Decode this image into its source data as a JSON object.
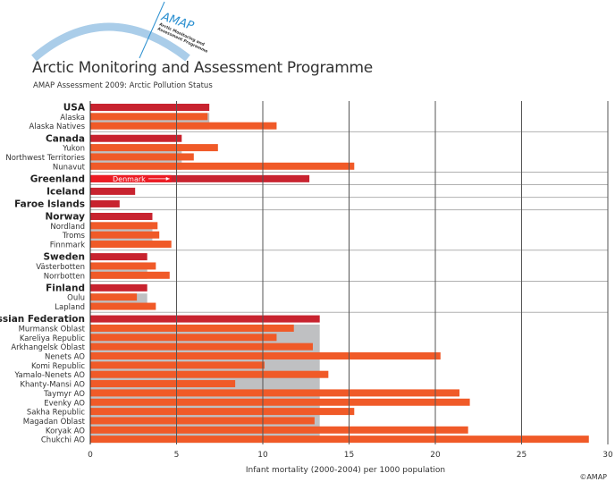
{
  "header": {
    "logo_text": "AMAP",
    "logo_subtext": "Arctic Monitoring and Assessment Programme",
    "title": "Arctic Monitoring and Assessment Programme",
    "subtitle": "AMAP Assessment 2009: Arctic Pollution Status",
    "copyright": "©AMAP"
  },
  "colors": {
    "national": "#c8232f",
    "regional": "#f05a28",
    "reference": "#bfc0c2",
    "denmark": "#ec1c24",
    "grid": "#555555",
    "logo": "#aacde9",
    "logo_text": "#2a8fd0"
  },
  "chart_data": {
    "type": "bar",
    "orientation": "horizontal",
    "xlabel": "Infant mortality (2000-2004) per 1000 population",
    "xlim": [
      0,
      30
    ],
    "xticks": [
      0,
      5,
      10,
      15,
      20,
      25,
      30
    ],
    "grid": true,
    "annotation": {
      "label": "Denmark",
      "group": "Greenland",
      "value": 4.7
    },
    "groups": [
      {
        "name": "USA",
        "value": 6.9,
        "regions": [
          {
            "name": "Alaska",
            "value": 6.8
          },
          {
            "name": "Alaska Natives",
            "value": 10.8
          }
        ]
      },
      {
        "name": "Canada",
        "value": 5.3,
        "regions": [
          {
            "name": "Yukon",
            "value": 7.4
          },
          {
            "name": "Northwest Territories",
            "value": 6.0
          },
          {
            "name": "Nunavut",
            "value": 15.3
          }
        ]
      },
      {
        "name": "Greenland",
        "value": 12.7,
        "regions": []
      },
      {
        "name": "Iceland",
        "value": 2.6,
        "regions": []
      },
      {
        "name": "Faroe Islands",
        "value": 1.7,
        "regions": []
      },
      {
        "name": "Norway",
        "value": 3.6,
        "regions": [
          {
            "name": "Nordland",
            "value": 3.9
          },
          {
            "name": "Troms",
            "value": 4.0
          },
          {
            "name": "Finnmark",
            "value": 4.7
          }
        ]
      },
      {
        "name": "Sweden",
        "value": 3.3,
        "regions": [
          {
            "name": "Västerbotten",
            "value": 3.8
          },
          {
            "name": "Norrbotten",
            "value": 4.6
          }
        ]
      },
      {
        "name": "Finland",
        "value": 3.3,
        "regions": [
          {
            "name": "Oulu",
            "value": 2.7
          },
          {
            "name": "Lapland",
            "value": 3.8
          }
        ]
      },
      {
        "name": "Russian Federation",
        "value": 13.3,
        "regions": [
          {
            "name": "Murmansk Oblast",
            "value": 11.8
          },
          {
            "name": "Kareliya Republic",
            "value": 10.8
          },
          {
            "name": "Arkhangelsk Oblast",
            "value": 12.9
          },
          {
            "name": "Nenets AO",
            "value": 20.3
          },
          {
            "name": "Komi Republic",
            "value": 10.1
          },
          {
            "name": "Yamalo-Nenets AO",
            "value": 13.8
          },
          {
            "name": "Khanty-Mansi AO",
            "value": 8.4
          },
          {
            "name": "Taymyr AO",
            "value": 21.4
          },
          {
            "name": "Evenky AO",
            "value": 22.0
          },
          {
            "name": "Sakha Republic",
            "value": 15.3
          },
          {
            "name": "Magadan Oblast",
            "value": 13.0
          },
          {
            "name": "Koryak AO",
            "value": 21.9
          },
          {
            "name": "Chukchi AO",
            "value": 28.9
          }
        ]
      }
    ]
  }
}
